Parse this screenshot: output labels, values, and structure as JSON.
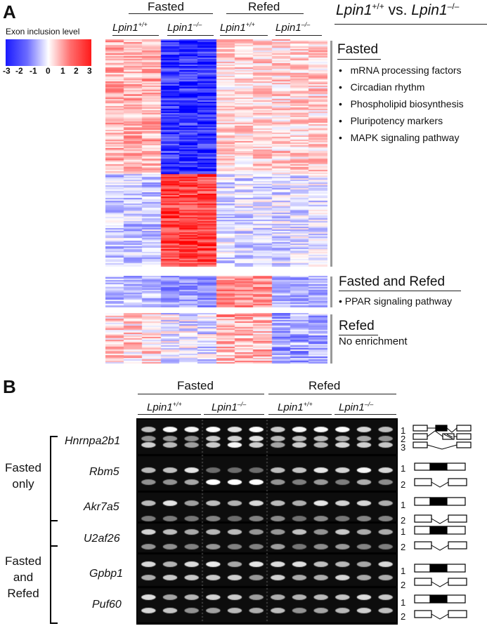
{
  "panelA": {
    "letter": "A",
    "colorbar": {
      "title": "Exon inclusion level",
      "ticks": [
        "-3",
        "-2",
        "-1",
        "0",
        "1",
        "2",
        "3"
      ],
      "low_color": "#1a1aff",
      "mid_color": "#ffffff",
      "high_color": "#ff1a1a"
    },
    "headers": {
      "fasted": "Fasted",
      "refed": "Refed",
      "wt_base": "Lpin1",
      "wt_sup": "+/+",
      "ko_base": "Lpin1",
      "ko_sup": "–/–"
    },
    "comparison": {
      "base1": "Lpin1",
      "sup1": "+/+",
      "mid": " vs. ",
      "base2": "Lpin1",
      "sup2": "–/–"
    },
    "sections": [
      {
        "title": "Fasted",
        "items": [
          "mRNA processing factors",
          "Circadian rhythm",
          "Phospholipid biosynthesis",
          "Pluripotency markers",
          "MAPK signaling pathway"
        ]
      },
      {
        "title": "Fasted and Refed",
        "items": [
          "PPAR signaling pathway"
        ]
      },
      {
        "title": "Refed",
        "note": "No enrichment"
      }
    ]
  },
  "panelB": {
    "letter": "B",
    "headers": {
      "fasted": "Fasted",
      "refed": "Refed",
      "wt_base": "Lpin1",
      "wt_sup": "+/+",
      "ko_base": "Lpin1",
      "ko_sup": "–/–"
    },
    "groups": [
      {
        "lines": [
          "Fasted",
          "only"
        ]
      },
      {
        "lines": [
          "Fasted",
          "and",
          "Refed"
        ]
      }
    ],
    "genes": [
      "Hnrnpa2b1",
      "Rbm5",
      "Akr7a5",
      "U2af26",
      "Gpbp1",
      "Puf60"
    ],
    "band_labels": {
      "Hnrnpa2b1": [
        "1",
        "2",
        "3"
      ],
      "Rbm5": [
        "1",
        "2"
      ],
      "Akr7a5": [
        "1",
        "2"
      ],
      "U2af26": [
        "1",
        "2"
      ],
      "Gpbp1": [
        "1",
        "2"
      ],
      "Puf60": [
        "1",
        "2"
      ]
    }
  }
}
